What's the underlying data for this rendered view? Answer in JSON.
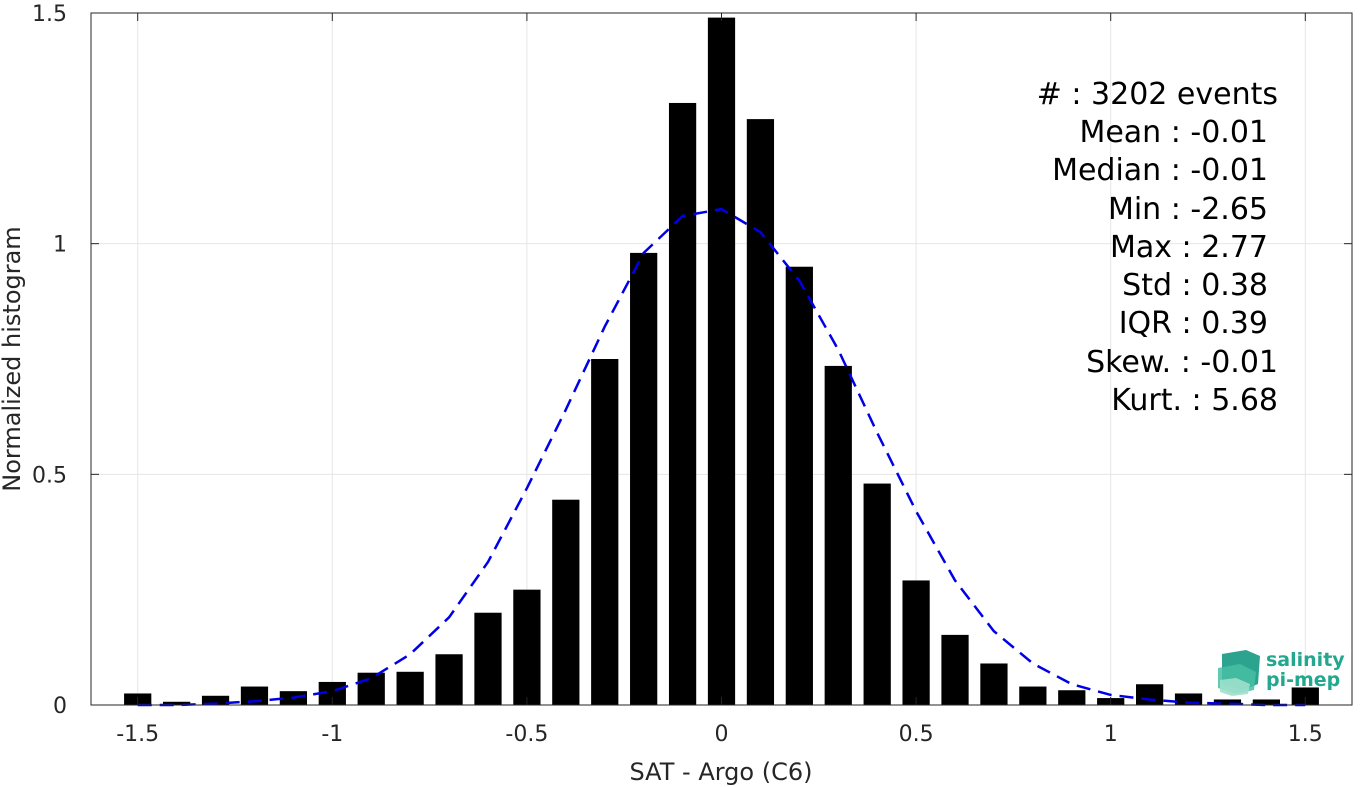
{
  "chart_data": {
    "type": "bar",
    "xlabel": "SAT - Argo (C6)",
    "ylabel": "Normalized histogram",
    "xlim": [
      -1.62,
      1.62
    ],
    "ylim": [
      0,
      1.5
    ],
    "grid": true,
    "x_ticks": [
      -1.5,
      -1,
      -0.5,
      0,
      0.5,
      1,
      1.5
    ],
    "x_tick_labels": [
      "-1.5",
      "-1",
      "-0.5",
      "0",
      "0.5",
      "1",
      "1.5"
    ],
    "y_ticks": [
      0,
      0.5,
      1,
      1.5
    ],
    "y_tick_labels": [
      "0",
      "0.5",
      "1",
      "1.5"
    ],
    "bar_color": "#000000",
    "bars": {
      "x": [
        -1.5,
        -1.4,
        -1.3,
        -1.2,
        -1.1,
        -1.0,
        -0.9,
        -0.8,
        -0.7,
        -0.6,
        -0.5,
        -0.4,
        -0.3,
        -0.2,
        -0.1,
        0.0,
        0.1,
        0.2,
        0.3,
        0.4,
        0.5,
        0.6,
        0.7,
        0.8,
        0.9,
        1.0,
        1.1,
        1.2,
        1.3,
        1.4,
        1.5
      ],
      "values": [
        0.025,
        0.007,
        0.02,
        0.04,
        0.03,
        0.05,
        0.07,
        0.072,
        0.11,
        0.2,
        0.25,
        0.445,
        0.75,
        0.98,
        1.305,
        1.49,
        1.27,
        0.95,
        0.735,
        0.48,
        0.27,
        0.152,
        0.09,
        0.04,
        0.032,
        0.015,
        0.045,
        0.025,
        0.012,
        0.012,
        0.038
      ]
    },
    "fit_curve": {
      "style": "dashed",
      "color": "#0000e6",
      "x": [
        -1.5,
        -1.4,
        -1.3,
        -1.2,
        -1.1,
        -1.0,
        -0.9,
        -0.8,
        -0.7,
        -0.6,
        -0.5,
        -0.4,
        -0.3,
        -0.2,
        -0.1,
        0.0,
        0.1,
        0.2,
        0.3,
        0.4,
        0.5,
        0.6,
        0.7,
        0.8,
        0.9,
        1.0,
        1.1,
        1.2,
        1.3,
        1.4,
        1.5
      ],
      "values": [
        0.0,
        0.0,
        0.003,
        0.008,
        0.016,
        0.03,
        0.058,
        0.11,
        0.19,
        0.31,
        0.47,
        0.64,
        0.82,
        0.98,
        1.06,
        1.075,
        1.025,
        0.92,
        0.77,
        0.59,
        0.42,
        0.27,
        0.16,
        0.09,
        0.045,
        0.022,
        0.012,
        0.005,
        0.003,
        0.0,
        0.0
      ]
    },
    "annotations": [
      "#  : 3202 events",
      "Mean : -0.01",
      "Median : -0.01",
      "Min : -2.65",
      "Max : 2.77",
      "Std : 0.38",
      "IQR : 0.39",
      "Skew. : -0.01",
      "Kurt. : 5.68"
    ]
  },
  "logo": {
    "line1": "salinity",
    "line2": "pi-mep",
    "color": "#21a88f"
  }
}
